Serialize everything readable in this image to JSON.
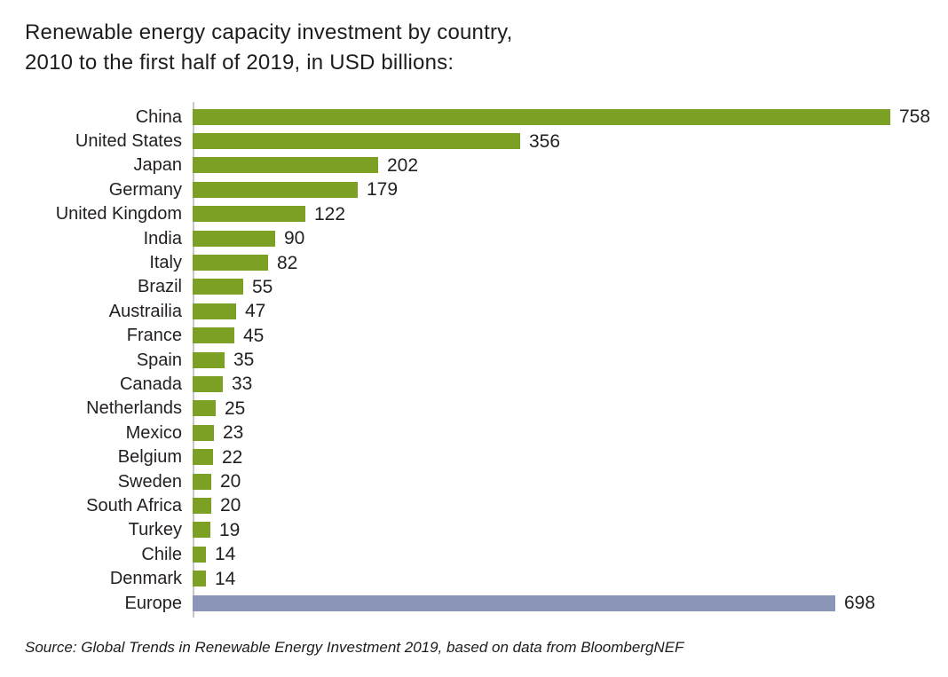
{
  "title": {
    "line1": "Renewable energy capacity investment by country,",
    "line2": "2010 to the first half of 2019, in USD billions:"
  },
  "source": "Source: Global Trends in Renewable Energy Investment 2019, based on data from BloombergNEF",
  "chart_data": {
    "type": "bar",
    "orientation": "horizontal",
    "title": "Renewable energy capacity investment by country, 2010 to the first half of 2019, in USD billions",
    "unit": "USD billions",
    "xlim": [
      0,
      758
    ],
    "grid": false,
    "legend": false,
    "value_labels": "outside-end",
    "colors": {
      "bar_default": "#7ba023",
      "bar_europe": "#8b95b8",
      "axis_line": "#c8c8c8",
      "text": "#231f20"
    },
    "rows": [
      {
        "label": "China",
        "value": 758
      },
      {
        "label": "United States",
        "value": 356
      },
      {
        "label": "Japan",
        "value": 202
      },
      {
        "label": "Germany",
        "value": 179
      },
      {
        "label": "United Kingdom",
        "value": 122
      },
      {
        "label": "India",
        "value": 90
      },
      {
        "label": "Italy",
        "value": 82
      },
      {
        "label": "Brazil",
        "value": 55
      },
      {
        "label": "Austrailia",
        "value": 47
      },
      {
        "label": "France",
        "value": 45
      },
      {
        "label": "Spain",
        "value": 35
      },
      {
        "label": "Canada",
        "value": 33
      },
      {
        "label": "Netherlands",
        "value": 25
      },
      {
        "label": "Mexico",
        "value": 23
      },
      {
        "label": "Belgium",
        "value": 22
      },
      {
        "label": "Sweden",
        "value": 20
      },
      {
        "label": "South Africa",
        "value": 20
      },
      {
        "label": "Turkey",
        "value": 19
      },
      {
        "label": "Chile",
        "value": 14
      },
      {
        "label": "Denmark",
        "value": 14
      },
      {
        "label": "Europe",
        "value": 698,
        "highlight": "europe"
      }
    ]
  }
}
